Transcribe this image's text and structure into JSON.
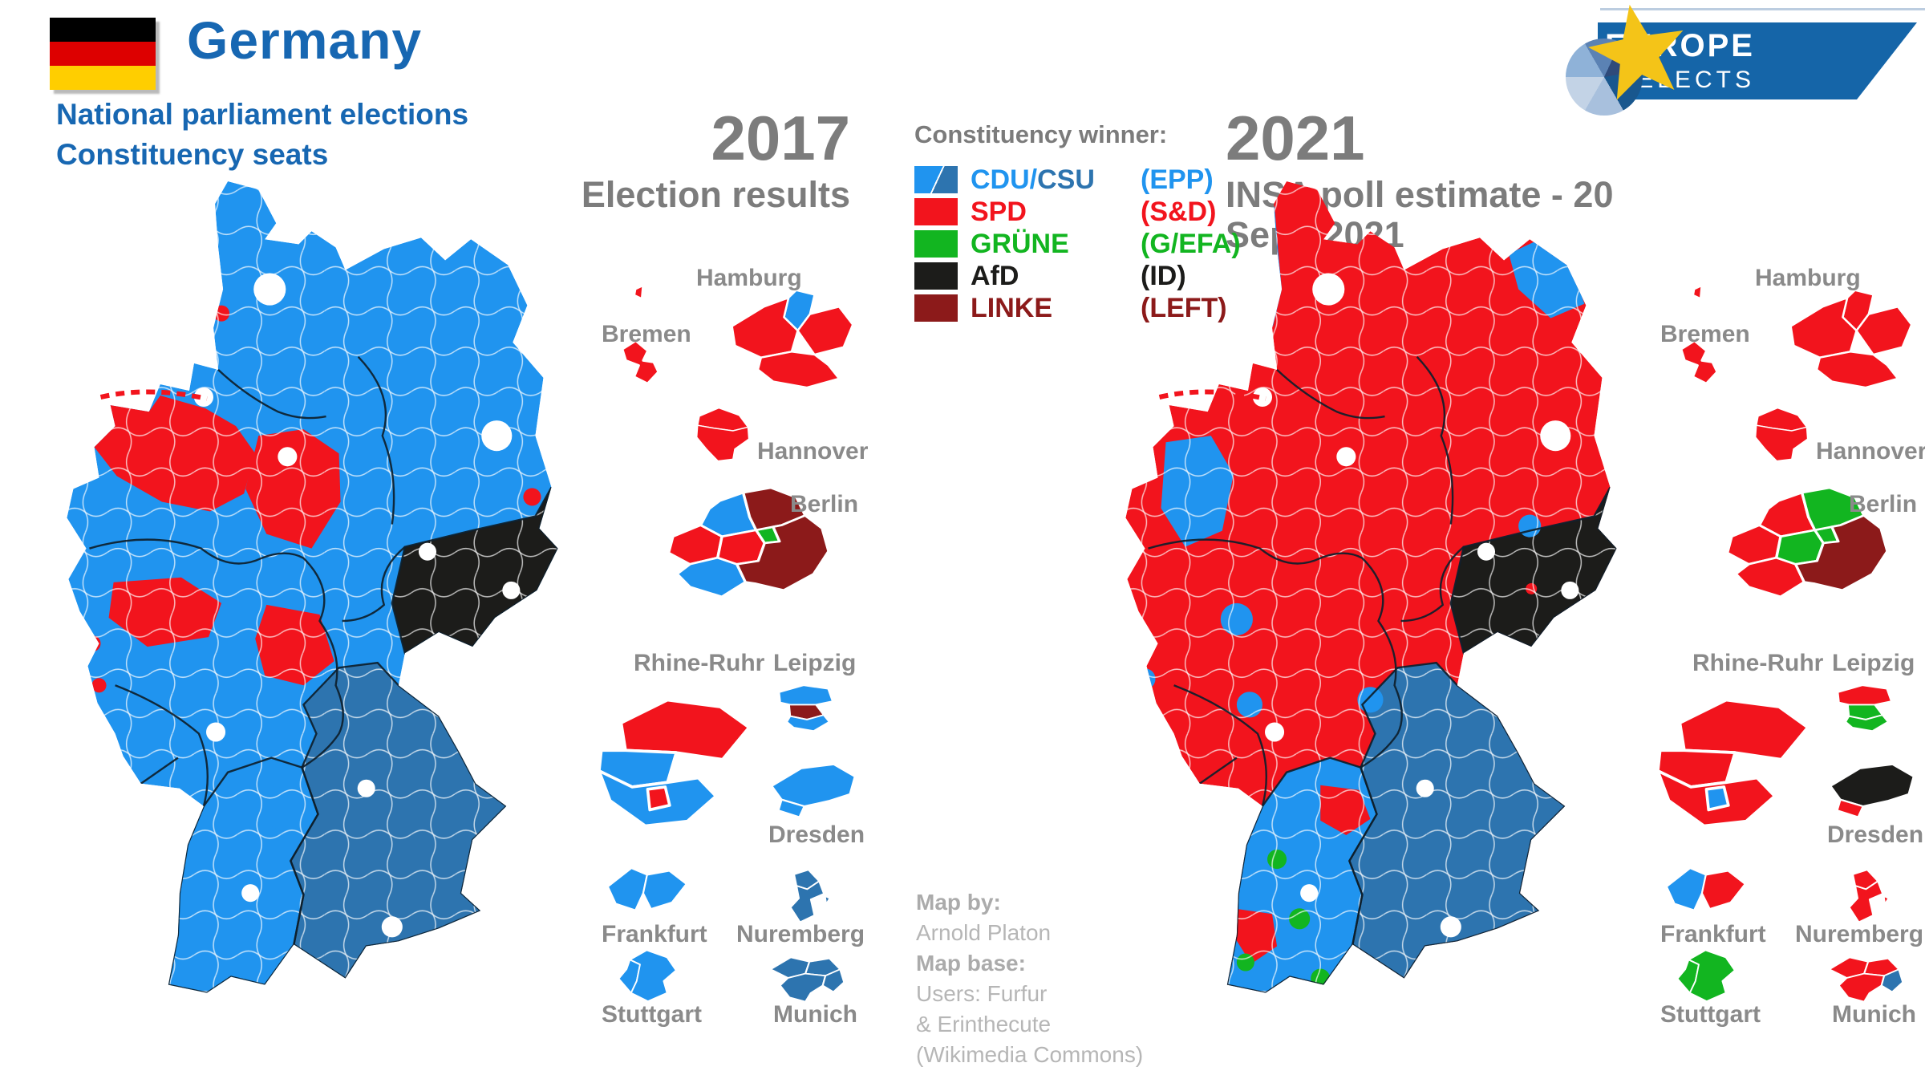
{
  "header": {
    "country": "Germany",
    "subtitle_line1": "National parliament elections",
    "subtitle_line2": "Constituency seats",
    "title_color": "#1767b2"
  },
  "flag_colors": [
    "#000000",
    "#dd0000",
    "#ffce00"
  ],
  "panels": [
    {
      "year": "2017",
      "subtitle": "Election results"
    },
    {
      "year": "2021",
      "subtitle": "INSA poll estimate - 20 Sept. 2021"
    }
  ],
  "legend": {
    "title": "Constituency winner:",
    "entries": [
      {
        "label_parts": [
          {
            "text": "CDU/",
            "party": "CDU"
          },
          {
            "text": "CSU",
            "party": "CSU"
          }
        ],
        "group": "(EPP)",
        "group_party": "CDU",
        "swatch": [
          "CDU",
          "CSU"
        ]
      },
      {
        "label_parts": [
          {
            "text": "SPD",
            "party": "SPD"
          }
        ],
        "group": "(S&D)",
        "group_party": "SPD",
        "swatch": [
          "SPD"
        ]
      },
      {
        "label_parts": [
          {
            "text": "GRÜNE",
            "party": "GRUNE"
          }
        ],
        "group": "(G/EFA)",
        "group_party": "GRUNE",
        "swatch": [
          "GRUNE"
        ]
      },
      {
        "label_parts": [
          {
            "text": "AfD",
            "party": "AFD"
          }
        ],
        "group": "(ID)",
        "group_party": "AFD",
        "swatch": [
          "AFD"
        ]
      },
      {
        "label_parts": [
          {
            "text": "LINKE",
            "party": "LINKE"
          }
        ],
        "group": "(LEFT)",
        "group_party": "LINKE",
        "swatch": [
          "LINKE"
        ]
      }
    ]
  },
  "party_colors": {
    "CDU": "#2094ef",
    "CSU": "#2d74af",
    "SPD": "#f2141d",
    "GRUNE": "#12b520",
    "AFD": "#1c1c1a",
    "LINKE": "#8c1a1a"
  },
  "logo": {
    "line1": "EUROPE",
    "line2": "ELECTS",
    "banner_color": "#1565a8",
    "star_color": "#f4c418"
  },
  "credits": {
    "lines": [
      {
        "text": "Map by:",
        "bold": true
      },
      {
        "text": "Arnold Platon",
        "bold": false
      },
      {
        "text": "Map base:",
        "bold": true
      },
      {
        "text": "Users: Furfur",
        "bold": false
      },
      {
        "text": "& Erinthecute",
        "bold": false
      },
      {
        "text": "(Wikimedia Commons)",
        "bold": false
      }
    ]
  },
  "map_base": [
    "CDU",
    "SPD"
  ],
  "map_regions": [
    {
      "id": "east-frisia",
      "winners": [
        "SPD",
        "SPD"
      ]
    },
    {
      "id": "schleswig-west",
      "winners": [
        "CDU",
        "CDU"
      ]
    },
    {
      "id": "emsland",
      "winners": [
        "CDU",
        "CDU"
      ]
    },
    {
      "id": "ruegen",
      "winners": [
        "CDU",
        "CDU"
      ]
    },
    {
      "id": "hannover-belt",
      "winners": [
        "SPD",
        "SPD"
      ]
    },
    {
      "id": "kassel",
      "winners": [
        "SPD",
        "SPD"
      ]
    },
    {
      "id": "ruhr",
      "winners": [
        "SPD",
        "SPD"
      ]
    },
    {
      "id": "saar",
      "winners": [
        "SPD",
        "SPD"
      ]
    },
    {
      "id": "baden-wuerttemberg",
      "winners": [
        "CDU",
        "CDU"
      ]
    },
    {
      "id": "bavaria",
      "winners": [
        "CSU",
        "CSU"
      ]
    },
    {
      "id": "saxony",
      "winners": [
        "AFD",
        "AFD"
      ]
    },
    {
      "id": "saxony-dot",
      "winners": [
        "AFD",
        "SPD"
      ],
      "keep": true
    },
    {
      "id": "west-spot-a",
      "winners": [
        "SPD",
        "SPD"
      ]
    },
    {
      "id": "west-spot-b",
      "winners": [
        "SPD",
        "SPD"
      ]
    },
    {
      "id": "west-spot-c",
      "winners": [
        "CDU",
        "CDU"
      ]
    },
    {
      "id": "west-spot-d",
      "winners": [
        "CDU",
        "CDU"
      ]
    },
    {
      "id": "pfalz-dot",
      "winners": [
        "SPD",
        "SPD"
      ]
    },
    {
      "id": "schwerin-dot",
      "winners": [
        "SPD",
        "SPD"
      ]
    },
    {
      "id": "brandenburg-dot",
      "winners": [
        "SPD",
        "SPD"
      ]
    },
    {
      "id": "flaeming-spot",
      "winners": [
        "CDU",
        "CDU"
      ]
    },
    {
      "id": "sauerland-spot",
      "winners": [
        "CDU",
        "CDU"
      ]
    },
    {
      "id": "siegen-spot",
      "winners": [
        "CDU",
        "CDU"
      ]
    },
    {
      "id": "fulda-spot",
      "winners": [
        "CDU",
        "CDU"
      ]
    },
    {
      "id": "bw-red-north",
      "winners": [
        "CDU",
        "SPD"
      ],
      "keep": true
    },
    {
      "id": "bw-red-southwest",
      "winners": [
        "CDU",
        "SPD"
      ],
      "keep": true
    },
    {
      "id": "bw-green-1",
      "winners": [
        "CDU",
        "GRUNE"
      ]
    },
    {
      "id": "bw-green-2",
      "winners": [
        "CDU",
        "GRUNE"
      ]
    },
    {
      "id": "bw-green-3",
      "winners": [
        "CDU",
        "GRUNE"
      ]
    },
    {
      "id": "bw-green-4",
      "winners": [
        "CDU",
        "GRUNE"
      ]
    },
    {
      "id": "frisian-islands",
      "winners": [
        "SPD",
        "SPD"
      ],
      "keep": true
    }
  ],
  "insets": [
    {
      "id": "hamburg",
      "label": "Hamburg",
      "winners": {
        "n": [
          "CDU",
          "SPD"
        ],
        "w": [
          "SPD",
          "SPD"
        ],
        "e": [
          "SPD",
          "SPD"
        ],
        "s": [
          "SPD",
          "SPD"
        ]
      }
    },
    {
      "id": "bremen",
      "label": "Bremen",
      "winners": {
        "bhv": [
          "SPD",
          "SPD"
        ],
        "main": [
          "SPD",
          "SPD"
        ]
      }
    },
    {
      "id": "hannover",
      "label": "Hannover",
      "winners": {
        "n": [
          "SPD",
          "SPD"
        ],
        "s": [
          "SPD",
          "SPD"
        ]
      }
    },
    {
      "id": "berlin",
      "label": "Berlin",
      "winners": {
        "nw": [
          "CDU",
          "SPD"
        ],
        "w": [
          "SPD",
          "SPD"
        ],
        "sw": [
          "CDU",
          "SPD"
        ],
        "center": [
          "SPD",
          "GRUNE"
        ],
        "greenc": [
          "GRUNE",
          "GRUNE"
        ],
        "ne": [
          "LINKE",
          "GRUNE"
        ],
        "se": [
          "LINKE",
          "LINKE"
        ]
      }
    },
    {
      "id": "rhineruhr",
      "label": "Rhine-Ruhr",
      "winners": {
        "north": [
          "SPD",
          "SPD"
        ],
        "midwest": [
          "CDU",
          "SPD"
        ],
        "south": [
          "CDU",
          "SPD"
        ],
        "spot": [
          "SPD",
          "CDU"
        ]
      }
    },
    {
      "id": "leipzig",
      "label": "Leipzig",
      "winners": {
        "n": [
          "CDU",
          "SPD"
        ],
        "c": [
          "LINKE",
          "GRUNE"
        ],
        "s": [
          "CDU",
          "GRUNE"
        ]
      }
    },
    {
      "id": "dresden",
      "label": "Dresden",
      "winners": {
        "main": [
          "CDU",
          "AFD"
        ],
        "sw": [
          "CDU",
          "SPD"
        ]
      }
    },
    {
      "id": "frankfurt",
      "label": "Frankfurt",
      "winners": {
        "w": [
          "CDU",
          "CDU"
        ],
        "e": [
          "CDU",
          "SPD"
        ]
      }
    },
    {
      "id": "nuremberg",
      "label": "Nuremberg",
      "winners": {
        "n": [
          "CSU",
          "SPD"
        ],
        "s": [
          "CSU",
          "SPD"
        ],
        "dot": [
          "CSU",
          "SPD"
        ]
      }
    },
    {
      "id": "stuttgart",
      "label": "Stuttgart",
      "winners": {
        "w": [
          "CDU",
          "GRUNE"
        ],
        "main": [
          "CDU",
          "GRUNE"
        ]
      }
    },
    {
      "id": "munich",
      "label": "Munich",
      "winners": {
        "nw": [
          "CSU",
          "SPD"
        ],
        "ne": [
          "CSU",
          "SPD"
        ],
        "s": [
          "CSU",
          "SPD"
        ],
        "se": [
          "CSU",
          "CSU"
        ]
      }
    }
  ]
}
